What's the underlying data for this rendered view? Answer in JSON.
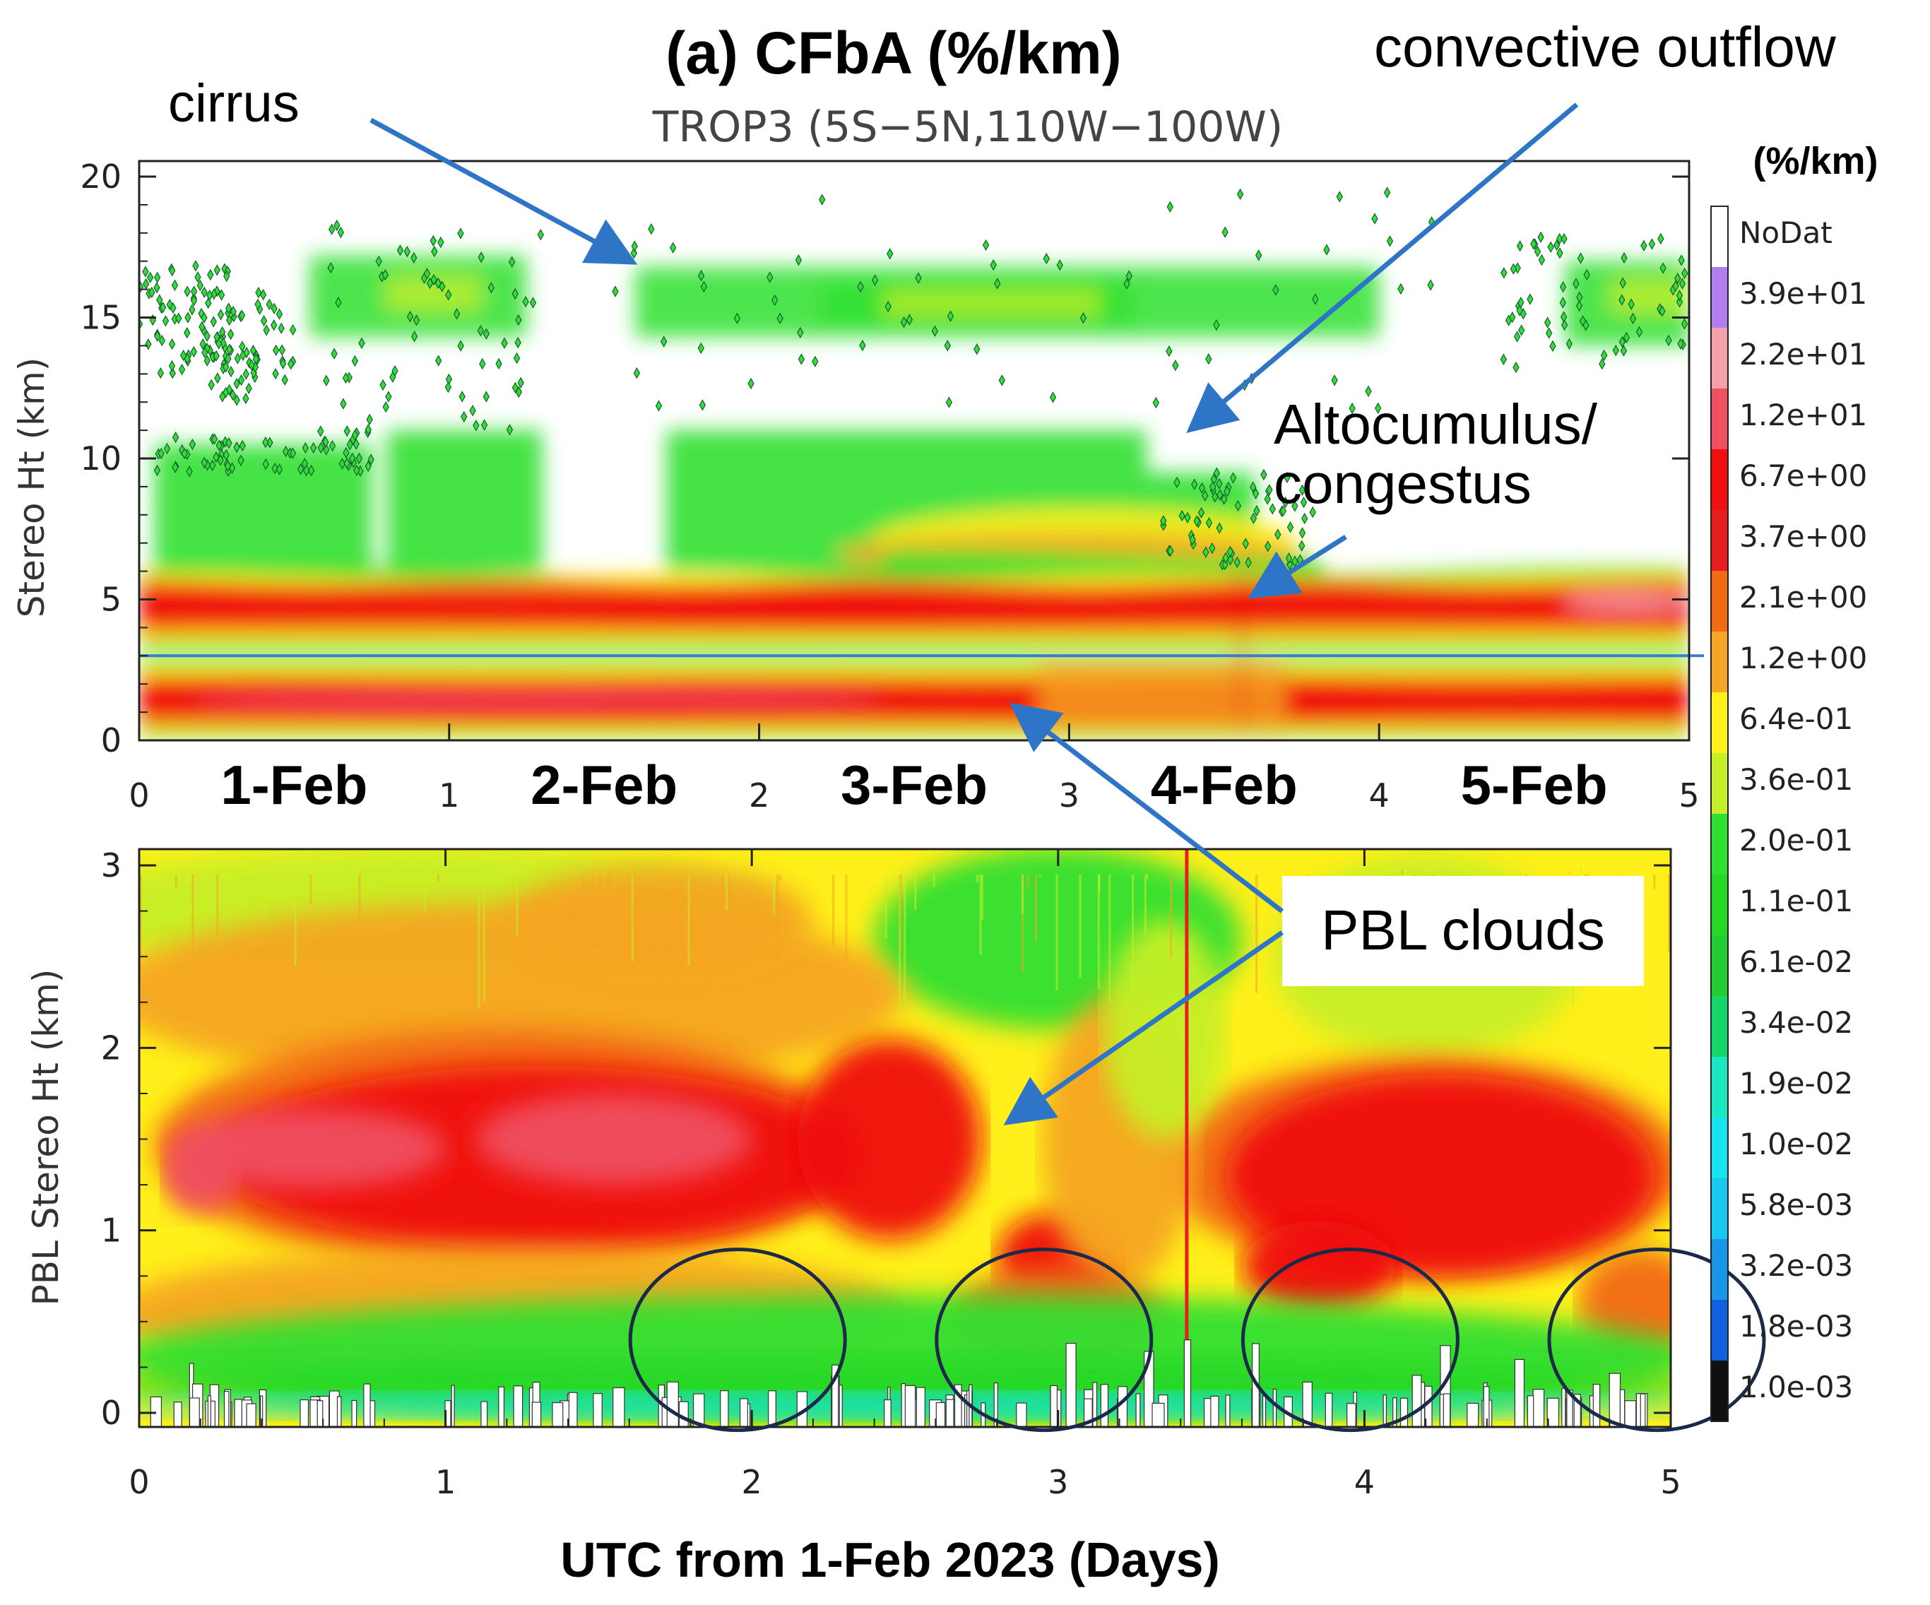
{
  "chart_data": {
    "type": "heatmap",
    "title": "(a) CFbA (%/km)",
    "subtitle": "TROP3 (5S−5N,110W−100W)",
    "xlabel": "UTC from 1-Feb 2023 (Days)",
    "xlim": [
      0,
      5
    ],
    "x_ticks": [
      "0",
      "1",
      "2",
      "3",
      "4",
      "5"
    ],
    "day_labels": [
      "1-Feb",
      "2-Feb",
      "3-Feb",
      "4-Feb",
      "5-Feb"
    ],
    "colorbar": {
      "unit": "(%/km)",
      "levels": [
        "NoDat",
        "3.9e+01",
        "2.2e+01",
        "1.2e+01",
        "6.7e+00",
        "3.7e+00",
        "2.1e+00",
        "1.2e+00",
        "6.4e-01",
        "3.6e-01",
        "2.0e-01",
        "1.1e-01",
        "6.1e-02",
        "3.4e-02",
        "1.9e-02",
        "1.0e-02",
        "5.8e-03",
        "3.2e-03",
        "1.8e-03",
        "1.0e-03"
      ],
      "colors": [
        "#ffffff",
        "#b07ef0",
        "#f4a0a8",
        "#f05060",
        "#f01010",
        "#e81e1e",
        "#f26a14",
        "#f5a623",
        "#ffef1a",
        "#c6ef28",
        "#30e030",
        "#26d826",
        "#20cc30",
        "#14d66a",
        "#1ae8c0",
        "#18e4f0",
        "#18c8f0",
        "#1896e8",
        "#1060e0",
        "#101010"
      ]
    },
    "panels": [
      {
        "name": "upper",
        "ylabel": "Stereo Ht (km)",
        "ylim": [
          0,
          20
        ],
        "y_ticks": [
          "0",
          "5",
          "10",
          "15",
          "20"
        ],
        "reference_line_km": 3.0,
        "layers": [
          {
            "feature": "PBL cloud layer",
            "y_range_km": [
              0.3,
              2.2
            ],
            "peak": "1.2e+01"
          },
          {
            "feature": "Altocumulus/congestus layer",
            "y_range_km": [
              3.8,
              6.0
            ],
            "peak": "6.7e+00"
          },
          {
            "feature": "mid-level convective cloud",
            "y_range_km": [
              6.0,
              11.0
            ],
            "peak": "2.0e-01"
          },
          {
            "feature": "cirrus",
            "y_range_km": [
              13.5,
              17.5
            ],
            "peak": "3.6e-01"
          }
        ]
      },
      {
        "name": "lower",
        "ylabel": "PBL Stereo Ht (km)",
        "ylim": [
          0,
          3
        ],
        "y_ticks": [
          "0",
          "1",
          "2",
          "3"
        ],
        "layers": [
          {
            "feature": "PBL cloud core",
            "x_range_days": [
              0.05,
              2.7
            ],
            "y_range_km": [
              0.9,
              1.9
            ],
            "peak": "2.2e+01"
          },
          {
            "feature": "PBL cloud core",
            "x_range_days": [
              3.4,
              5.0
            ],
            "y_range_km": [
              0.6,
              1.8
            ],
            "peak": "3.7e+00"
          }
        ],
        "circled_days": [
          2,
          3,
          4,
          5
        ]
      }
    ],
    "annotations": [
      "cirrus",
      "convective outflow",
      "Altocumulus/",
      "congestus",
      "PBL clouds"
    ]
  }
}
